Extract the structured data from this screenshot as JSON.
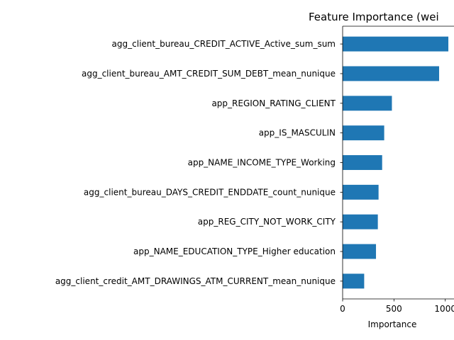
{
  "chart_data": {
    "type": "bar",
    "orientation": "horizontal",
    "title": "Feature Importance (wei",
    "xlabel": "Importance",
    "ylabel": "",
    "xlim": [
      0,
      1085
    ],
    "xticks": [
      0,
      500,
      1000
    ],
    "grid": false,
    "bar_color": "#1f77b4",
    "categories": [
      "agg_client_bureau_CREDIT_ACTIVE_Active_sum_sum",
      "agg_client_bureau_AMT_CREDIT_SUM_DEBT_mean_nunique",
      "app_REGION_RATING_CLIENT",
      "app_IS_MASCULIN",
      "app_NAME_INCOME_TYPE_Working",
      "agg_client_bureau_DAYS_CREDIT_ENDDATE_count_nunique",
      "app_REG_CITY_NOT_WORK_CITY",
      "app_NAME_EDUCATION_TYPE_Higher education",
      "agg_client_credit_AMT_DRAWINGS_ATM_CURRENT_mean_nunique"
    ],
    "values": [
      1030,
      940,
      480,
      405,
      385,
      350,
      343,
      325,
      210
    ]
  }
}
